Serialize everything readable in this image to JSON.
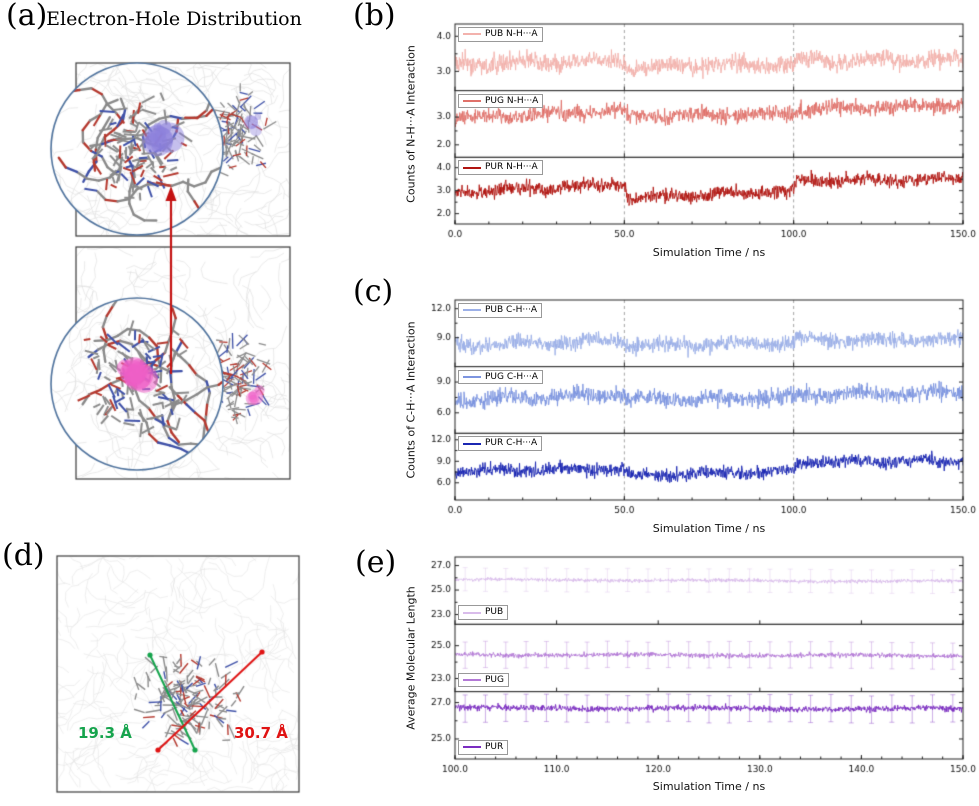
{
  "figure": {
    "panel_a": {
      "label": "(a)",
      "title": "Electron-Hole Distribution",
      "electron_color": "#8b80dc",
      "hole_color": "#ef5ec7",
      "arrow_color": "#c41212",
      "inset_circle_color": "#51749e"
    },
    "panel_b": {
      "label": "(b)"
    },
    "panel_c": {
      "label": "(c)"
    },
    "panel_d": {
      "label": "(d)",
      "green_length_label": "19.3 Å",
      "red_length_label": "30.7 Å",
      "green_color": "#16a44d",
      "red_color": "#e01313"
    },
    "panel_e": {
      "label": "(e)"
    }
  },
  "chart_data": [
    {
      "id": "b",
      "type": "line",
      "title": "",
      "ylabel": "Counts of N-H···A Interaction",
      "xlabel": "Simulation Time / ns",
      "xlim": [
        0,
        150
      ],
      "xticks": [
        0,
        50,
        100,
        150
      ],
      "dashed_vlines": [
        50,
        100
      ],
      "legend_position": "top-left",
      "subplots": [
        {
          "legend": "PUB N-H···A",
          "color": "#f3b2ad",
          "ylim": [
            2.45,
            4.35
          ],
          "yticks": [
            3,
            4
          ],
          "trend": [
            [
              0,
              3.2
            ],
            [
              50,
              3.32
            ],
            [
              51,
              3.08
            ],
            [
              75,
              3.18
            ],
            [
              100,
              3.22
            ],
            [
              101,
              3.32
            ],
            [
              150,
              3.32
            ]
          ],
          "noise": 0.16
        },
        {
          "legend": "PUG N-H···A",
          "color": "#e0716a",
          "ylim": [
            1.55,
            3.95
          ],
          "yticks": [
            2,
            3
          ],
          "trend": [
            [
              0,
              2.95
            ],
            [
              50,
              3.25
            ],
            [
              51,
              3.02
            ],
            [
              100,
              3.12
            ],
            [
              101,
              3.27
            ],
            [
              150,
              3.45
            ]
          ],
          "noise": 0.17
        },
        {
          "legend": "PUR N-H···A",
          "color": "#b11511",
          "ylim": [
            1.55,
            4.45
          ],
          "yticks": [
            2,
            3,
            4
          ],
          "trend": [
            [
              0,
              2.95
            ],
            [
              50,
              3.3
            ],
            [
              51,
              2.62
            ],
            [
              80,
              2.9
            ],
            [
              100,
              2.98
            ],
            [
              101,
              3.45
            ],
            [
              150,
              3.5
            ]
          ],
          "noise": 0.18
        }
      ]
    },
    {
      "id": "c",
      "type": "line",
      "title": "",
      "ylabel": "Counts of C-H···A Interaction",
      "xlabel": "Simulation Time / ns",
      "xlim": [
        0,
        150
      ],
      "xticks": [
        0,
        50,
        100,
        150
      ],
      "dashed_vlines": [
        50,
        100
      ],
      "legend_position": "top-left",
      "subplots": [
        {
          "legend": "PUB C-H···A",
          "color": "#9cb0e8",
          "ylim": [
            6.0,
            12.9
          ],
          "yticks": [
            9,
            12
          ],
          "trend": [
            [
              0,
              8.2
            ],
            [
              50,
              8.6
            ],
            [
              51,
              8.2
            ],
            [
              100,
              8.5
            ],
            [
              101,
              8.8
            ],
            [
              150,
              8.8
            ]
          ],
          "noise": 0.5
        },
        {
          "legend": "PUG C-H···A",
          "color": "#7d95e0",
          "ylim": [
            4.0,
            10.5
          ],
          "yticks": [
            6,
            9
          ],
          "trend": [
            [
              0,
              7.2
            ],
            [
              50,
              7.8
            ],
            [
              51,
              7.3
            ],
            [
              100,
              7.5
            ],
            [
              101,
              7.8
            ],
            [
              150,
              8.0
            ]
          ],
          "noise": 0.5
        },
        {
          "legend": "PUR C-H···A",
          "color": "#1b27b2",
          "ylim": [
            3.6,
            12.9
          ],
          "yticks": [
            6,
            9,
            12
          ],
          "trend": [
            [
              0,
              7.6
            ],
            [
              50,
              8.0
            ],
            [
              51,
              6.9
            ],
            [
              90,
              7.5
            ],
            [
              100,
              7.6
            ],
            [
              101,
              8.9
            ],
            [
              150,
              9.1
            ]
          ],
          "noise": 0.55
        }
      ]
    },
    {
      "id": "e",
      "type": "line",
      "title": "",
      "ylabel": "Average Molecular Length",
      "xlabel": "Simulation Time / ns",
      "xlim": [
        100,
        150
      ],
      "xticks": [
        100,
        110,
        120,
        130,
        140,
        150
      ],
      "legend_position": "bottom-left",
      "subplots": [
        {
          "legend": "PUB",
          "color": "#d9bceb",
          "ylim": [
            22.2,
            27.7
          ],
          "yticks": [
            23,
            25,
            27
          ],
          "trend": [
            [
              100,
              25.85
            ],
            [
              150,
              25.7
            ]
          ],
          "noise": 0.09,
          "error_bar": 0.95,
          "error_interval": 2
        },
        {
          "legend": "PUG",
          "color": "#b379d6",
          "ylim": [
            22.2,
            26.3
          ],
          "yticks": [
            23,
            25
          ],
          "trend": [
            [
              100,
              24.45
            ],
            [
              150,
              24.4
            ]
          ],
          "noise": 0.09,
          "error_bar": 0.8,
          "error_interval": 2
        },
        {
          "legend": "PUR",
          "color": "#7b2dc1",
          "ylim": [
            23.9,
            27.6
          ],
          "yticks": [
            25,
            27
          ],
          "trend": [
            [
              100,
              26.7
            ],
            [
              150,
              26.65
            ]
          ],
          "noise": 0.1,
          "error_bar": 0.75,
          "error_interval": 2
        }
      ]
    }
  ]
}
